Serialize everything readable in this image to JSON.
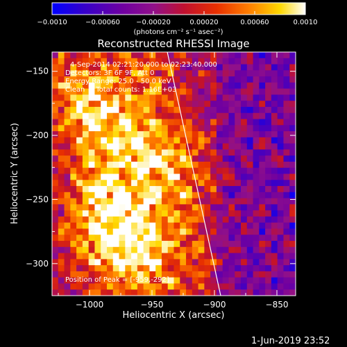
{
  "chart_data": {
    "type": "heatmap",
    "title": "Reconstructed RHESSI Image",
    "xlabel": "Heliocentric X (arcsec)",
    "ylabel": "Heliocentric Y (arcsec)",
    "xlim": [
      -1030,
      -835
    ],
    "ylim": [
      -325,
      -135
    ],
    "x_ticks": [
      -1000,
      -950,
      -900,
      -850
    ],
    "x_tick_labels": [
      "−1000",
      "−950",
      "−900",
      "−850"
    ],
    "y_ticks": [
      -300,
      -250,
      -200,
      -150
    ],
    "y_tick_labels": [
      "−300",
      "−250",
      "−200",
      "−150"
    ],
    "colorbar": {
      "range": [
        -0.001,
        0.001
      ],
      "ticks": [
        -0.001,
        -0.0006,
        -0.0002,
        0.0002,
        0.0006,
        0.001
      ],
      "tick_labels": [
        "−0.0010",
        "−0.00060",
        "−0.00020",
        "0.00020",
        "0.00060",
        "0.0010"
      ],
      "unit_label": "(photons cm⁻² s⁻¹ asec⁻²)"
    },
    "info_lines": [
      "4-Sep-2014 02:21:20.000 to 02:23:40.000",
      "Detectors: 3F 6F 9F, Att 0",
      "Energy Range: 25.0 - 50.0 keV",
      "Clean     Total counts: 1.16E+03"
    ],
    "peak_label": "Position of Peak = [-959,-292]",
    "peak_position": [
      -959,
      -292
    ],
    "limb_line": [
      [
        -940,
        -125
      ],
      [
        -895,
        -325
      ]
    ],
    "grid_cells": [
      40,
      40
    ]
  },
  "footer": {
    "timestamp": "1-Jun-2019 23:52"
  }
}
